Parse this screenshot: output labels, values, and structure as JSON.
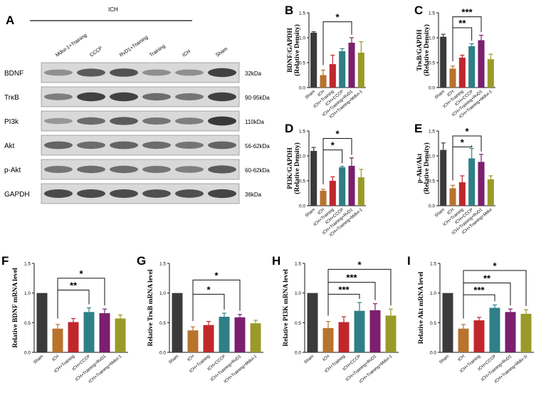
{
  "blot": {
    "panel_label": "A",
    "group_title": "ICH",
    "lanes": [
      "Mdivi-1+Training",
      "CCCP",
      "RvD1+Training",
      "Training",
      "ICH",
      "Sham"
    ],
    "bands": [
      {
        "name": "BDNF",
        "kda": "32kDa"
      },
      {
        "name": "TrκB",
        "kda": "90-95kDa"
      },
      {
        "name": "PI3k",
        "kda": "110kDa"
      },
      {
        "name": "Akt",
        "kda": "56-62kDa"
      },
      {
        "name": "p-Akt",
        "kda": "60-62kDa"
      },
      {
        "name": "GAPDH",
        "kda": "36kDa"
      }
    ]
  },
  "colors": {
    "Sham": "#3a3a3a",
    "ICH": "#b8732d",
    "ICH+Training": "#c0272d",
    "ICH+CCCP": "#2f7f86",
    "ICH+Training+RvD1": "#7b1f6e",
    "ICH+Training+Mdivi-1": "#9a9a2a"
  },
  "chart_data": [
    {
      "panel": "B",
      "type": "bar",
      "ylabel": "BDNF/GAPDH",
      "ylabel2": "(Relative Density)",
      "ylim": [
        0,
        1.5
      ],
      "yticks": [
        "0.0",
        "0.5",
        "1.0",
        "1.5"
      ],
      "categories": [
        "Sham",
        "ICH",
        "ICH+Training",
        "ICH+CCCP",
        "ICH+Training+RvD1",
        "ICH+Training+Mdivi-1"
      ],
      "values": [
        1.1,
        0.25,
        0.47,
        0.73,
        0.9,
        0.7
      ],
      "errors": [
        0.02,
        0.1,
        0.18,
        0.05,
        0.1,
        0.22
      ],
      "significance": [
        {
          "from": 1,
          "to": 4,
          "label": "*",
          "level": 1.32
        }
      ]
    },
    {
      "panel": "C",
      "type": "bar",
      "ylabel": "TrκB/GAPDH",
      "ylabel2": "(Relative Density)",
      "ylim": [
        0,
        1.5
      ],
      "yticks": [
        "0.0",
        "0.5",
        "1.0",
        "1.5"
      ],
      "categories": [
        "Sham",
        "ICH",
        "ICH+Training",
        "ICH+CCCP",
        "ICH+Training+RvD1",
        "ICH+Training+Mdivi-1"
      ],
      "values": [
        1.02,
        0.38,
        0.6,
        0.83,
        0.95,
        0.57
      ],
      "errors": [
        0.05,
        0.05,
        0.05,
        0.05,
        0.1,
        0.1
      ],
      "significance": [
        {
          "from": 1,
          "to": 4,
          "label": "***",
          "level": 1.42
        },
        {
          "from": 1,
          "to": 3,
          "label": "**",
          "level": 1.2
        }
      ]
    },
    {
      "panel": "D",
      "type": "bar",
      "ylabel": "PI3K/GAPDH",
      "ylabel2": "(Relative Density)",
      "ylim": [
        0,
        1.5
      ],
      "yticks": [
        "0.0",
        "0.5",
        "1.0",
        "1.5"
      ],
      "categories": [
        "Sham",
        "ICH",
        "ICH+Training",
        "ICH+CCCP",
        "ICH+Training+RvD1",
        "ICH+Training+Mdivi-1"
      ],
      "values": [
        1.1,
        0.3,
        0.5,
        0.77,
        0.8,
        0.57
      ],
      "errors": [
        0.07,
        0.03,
        0.08,
        0.02,
        0.16,
        0.16
      ],
      "significance": [
        {
          "from": 1,
          "to": 4,
          "label": "*",
          "level": 1.35
        },
        {
          "from": 1,
          "to": 3,
          "label": "*",
          "level": 1.12
        }
      ]
    },
    {
      "panel": "E",
      "type": "bar",
      "ylabel": "p-Akt/Akt",
      "ylabel2": "(Relative Density)",
      "ylim": [
        0,
        1.5
      ],
      "yticks": [
        "0.0",
        "0.5",
        "1.0",
        "1.5"
      ],
      "categories": [
        "Sham",
        "ICH",
        "ICH+Training",
        "ICH+CCCP",
        "ICH+Training+RvD1",
        "ICH+Training+Mdivi"
      ],
      "values": [
        1.12,
        0.35,
        0.47,
        0.95,
        0.88,
        0.53
      ],
      "errors": [
        0.14,
        0.06,
        0.13,
        0.2,
        0.15,
        0.07
      ],
      "significance": [
        {
          "from": 1,
          "to": 4,
          "label": "*",
          "level": 1.4
        },
        {
          "from": 1,
          "to": 3,
          "label": "*",
          "level": 1.18
        }
      ]
    },
    {
      "panel": "F",
      "type": "bar",
      "ylabel": "Relative BDNF mRNA level",
      "ylabel2": "",
      "ylim": [
        0,
        1.5
      ],
      "yticks": [
        "0.0",
        "0.5",
        "1.0",
        "1.5"
      ],
      "categories": [
        "Sham",
        "ICH",
        "ICH+Training",
        "ICH+CCCP",
        "ICH+Training+RvD1",
        "ICH+Training+Mdivi-1"
      ],
      "values": [
        1.0,
        0.4,
        0.51,
        0.68,
        0.66,
        0.57
      ],
      "errors": [
        0.0,
        0.07,
        0.06,
        0.07,
        0.07,
        0.06
      ],
      "significance": [
        {
          "from": 1,
          "to": 4,
          "label": "*",
          "level": 1.25
        },
        {
          "from": 1,
          "to": 3,
          "label": "**",
          "level": 1.05
        }
      ]
    },
    {
      "panel": "G",
      "type": "bar",
      "ylabel": "Relative TrκB mRNA level",
      "ylabel2": "",
      "ylim": [
        0,
        1.5
      ],
      "yticks": [
        "0.0",
        "0.5",
        "1.0",
        "1.5"
      ],
      "categories": [
        "Sham",
        "ICH",
        "ICH+Training",
        "ICH+CCCP",
        "ICH+Training+RvD1",
        "ICH+Training+Mdivi-1"
      ],
      "values": [
        1.0,
        0.37,
        0.46,
        0.6,
        0.59,
        0.49
      ],
      "errors": [
        0.0,
        0.06,
        0.06,
        0.06,
        0.05,
        0.05
      ],
      "significance": [
        {
          "from": 1,
          "to": 4,
          "label": "*",
          "level": 1.22
        },
        {
          "from": 1,
          "to": 3,
          "label": "*",
          "level": 0.98
        }
      ]
    },
    {
      "panel": "H",
      "type": "bar",
      "ylabel": "Relative PI3K mRNA level",
      "ylabel2": "",
      "ylim": [
        0,
        1.5
      ],
      "yticks": [
        "0.0",
        "0.5",
        "1.0",
        "1.5"
      ],
      "categories": [
        "Sham",
        "ICH",
        "ICH+Training",
        "ICH+CCCP",
        "ICH+Training+RvD1",
        "ICH+Training+Mdivi-1"
      ],
      "values": [
        1.0,
        0.41,
        0.51,
        0.7,
        0.71,
        0.62
      ],
      "errors": [
        0.0,
        0.11,
        0.09,
        0.14,
        0.11,
        0.11
      ],
      "significance": [
        {
          "from": 1,
          "to": 5,
          "label": "*",
          "level": 1.4
        },
        {
          "from": 1,
          "to": 4,
          "label": "***",
          "level": 1.18
        },
        {
          "from": 1,
          "to": 3,
          "label": "***",
          "level": 0.98
        }
      ]
    },
    {
      "panel": "I",
      "type": "bar",
      "ylabel": "Relative Akt mRNA level",
      "ylabel2": "",
      "ylim": [
        0,
        1.5
      ],
      "yticks": [
        "0.0",
        "0.5",
        "1.0",
        "1.5"
      ],
      "categories": [
        "Sham",
        "ICH",
        "ICH+Training",
        "ICH+CCCP",
        "ICH+Training+RvD1",
        "ICH+Training+Mdiv-1i"
      ],
      "values": [
        1.0,
        0.4,
        0.54,
        0.75,
        0.68,
        0.65
      ],
      "errors": [
        0.0,
        0.07,
        0.05,
        0.05,
        0.05,
        0.07
      ],
      "significance": [
        {
          "from": 1,
          "to": 5,
          "label": "*",
          "level": 1.38
        },
        {
          "from": 1,
          "to": 4,
          "label": "**",
          "level": 1.17
        },
        {
          "from": 1,
          "to": 3,
          "label": "***",
          "level": 0.97
        }
      ]
    }
  ]
}
